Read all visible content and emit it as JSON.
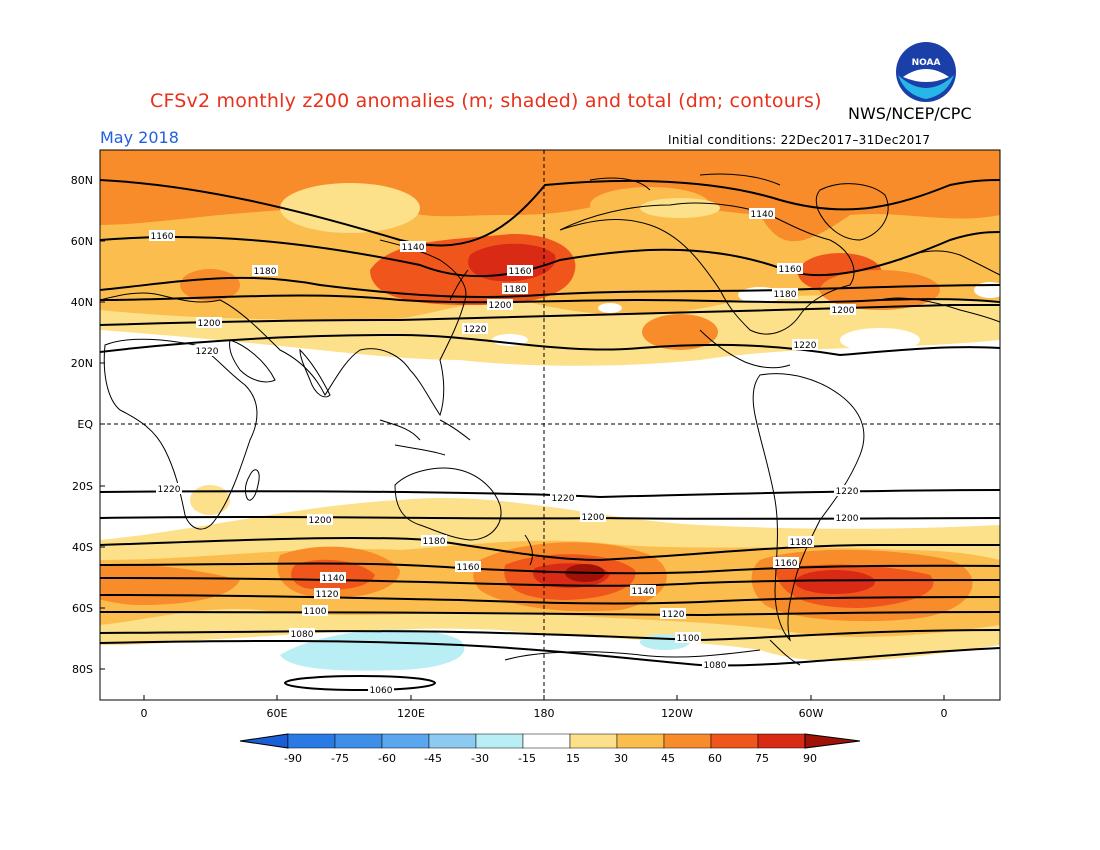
{
  "header": {
    "title": "CFSv2 monthly z200 anomalies (m; shaded) and total (dm; contours)",
    "agency": "NWS/NCEP/CPC",
    "month": "May 2018",
    "initial_conditions": "Initial conditions: 22Dec2017–31Dec2017",
    "logo_text": "NOAA"
  },
  "axes": {
    "lat_labels": [
      "80N",
      "60N",
      "40N",
      "20N",
      "EQ",
      "20S",
      "40S",
      "60S",
      "80S"
    ],
    "lon_labels": [
      "0",
      "60E",
      "120E",
      "180",
      "120W",
      "60W",
      "0"
    ]
  },
  "colorbar": {
    "labels": [
      "-90",
      "-75",
      "-60",
      "-45",
      "-30",
      "-15",
      "15",
      "30",
      "45",
      "60",
      "75",
      "90"
    ],
    "colors": [
      "#1a5fd8",
      "#2a7ae6",
      "#3f8fe8",
      "#5aa6ef",
      "#8ccaf2",
      "#b8eef4",
      "#ffffff",
      "#fde08a",
      "#fbbe4e",
      "#f88c2a",
      "#f0561c",
      "#d82a14",
      "#a01208"
    ]
  },
  "contour_labels": [
    {
      "text": "1160"
    },
    {
      "text": "1140"
    },
    {
      "text": "1180"
    },
    {
      "text": "1160"
    },
    {
      "text": "1180"
    },
    {
      "text": "1200"
    },
    {
      "text": "1220"
    },
    {
      "text": "1200"
    },
    {
      "text": "1220"
    },
    {
      "text": "1140"
    },
    {
      "text": "1160"
    },
    {
      "text": "1180"
    },
    {
      "text": "1200"
    },
    {
      "text": "1220"
    },
    {
      "text": "1220"
    },
    {
      "text": "1220"
    },
    {
      "text": "1220"
    },
    {
      "text": "1200"
    },
    {
      "text": "1200"
    },
    {
      "text": "1200"
    },
    {
      "text": "1180"
    },
    {
      "text": "1160"
    },
    {
      "text": "1180"
    },
    {
      "text": "1160"
    },
    {
      "text": "1140"
    },
    {
      "text": "1120"
    },
    {
      "text": "1140"
    },
    {
      "text": "1100"
    },
    {
      "text": "1120"
    },
    {
      "text": "1080"
    },
    {
      "text": "1100"
    },
    {
      "text": "1080"
    },
    {
      "text": "1060"
    }
  ]
}
